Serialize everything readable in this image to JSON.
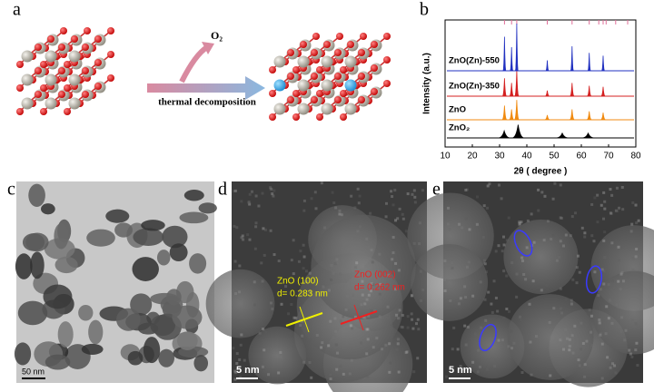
{
  "panel_a": {
    "label": "a",
    "gas": "O₂",
    "process": "thermal decomposition"
  },
  "chart_data": {
    "type": "xrd",
    "label": "b",
    "x_label": "2θ ( degree )",
    "y_label": "Intensity (a.u.)",
    "xlim": [
      10,
      80
    ],
    "xticks": [
      10,
      20,
      30,
      40,
      50,
      60,
      70,
      80
    ],
    "reference_peaks": [
      31.8,
      34.4,
      36.3,
      47.5,
      56.6,
      62.9,
      66.4,
      68.0,
      69.1,
      72.6,
      77.0
    ],
    "reference_color": "#e0709a",
    "series": [
      {
        "name": "ZnO₂",
        "color": "#000000",
        "x": [
          31.7,
          36.8,
          53.0,
          62.5
        ],
        "values": [
          0.15,
          0.28,
          0.1,
          0.1
        ]
      },
      {
        "name": "ZnO",
        "color": "#f08a10",
        "x": [
          31.8,
          34.4,
          36.3,
          47.5,
          56.6,
          62.9,
          68.0
        ],
        "values": [
          0.3,
          0.22,
          0.42,
          0.1,
          0.22,
          0.18,
          0.15
        ]
      },
      {
        "name": "ZnO(Zn)-350",
        "color": "#d42020",
        "x": [
          31.8,
          34.4,
          36.3,
          47.5,
          56.6,
          62.9,
          68.0
        ],
        "values": [
          0.38,
          0.28,
          0.55,
          0.12,
          0.28,
          0.22,
          0.2
        ]
      },
      {
        "name": "ZnO(Zn)-550",
        "color": "#2030c0",
        "x": [
          31.8,
          34.4,
          36.3,
          47.5,
          56.6,
          62.9,
          68.0
        ],
        "values": [
          0.72,
          0.5,
          1.0,
          0.22,
          0.52,
          0.38,
          0.32
        ]
      }
    ]
  },
  "panel_c": {
    "label": "c",
    "scale": "50 nm"
  },
  "panel_d": {
    "label": "d",
    "scale": "5 nm",
    "annotations": [
      {
        "plane": "ZnO (100)",
        "spacing": "d= 0.283 nm"
      },
      {
        "plane": "ZnO (002)",
        "spacing": "d= 0.262 nm"
      }
    ]
  },
  "panel_e": {
    "label": "e",
    "scale": "5 nm"
  }
}
